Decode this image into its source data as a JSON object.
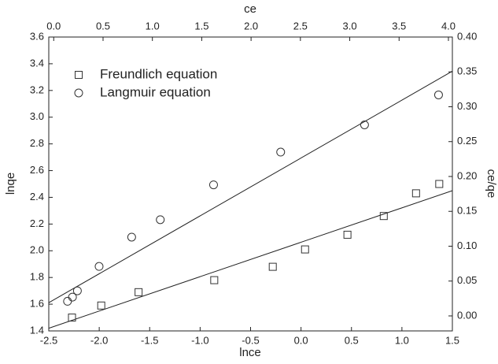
{
  "chart_data": {
    "type": "scatter",
    "x_label": "lnce",
    "y_label": "lnqe",
    "x2_label": "ce",
    "y2_label": "ce/qe",
    "xlim": [
      -2.5,
      1.5
    ],
    "xticks": [
      -2.5,
      {
        "value": -2,
        "label": "-2.0"
      },
      -1.5,
      {
        "value": -1,
        "label": "-1.0"
      },
      -0.5,
      {
        "value": 0,
        "label": "0.0"
      },
      0.5,
      {
        "value": 1,
        "label": "1.0"
      },
      1.5
    ],
    "ylim": [
      1.4,
      3.6
    ],
    "yticks": [
      1.4,
      1.6,
      1.8,
      {
        "value": 2,
        "label": "2.0"
      },
      2.2,
      2.4,
      2.6,
      2.8,
      {
        "value": 3,
        "label": "3.0"
      },
      3.2,
      3.4,
      3.6
    ],
    "x2lim": [
      -0.05,
      4.04
    ],
    "x2ticks": [
      {
        "value": 0,
        "label": "0.0"
      },
      0.5,
      {
        "value": 1,
        "label": "1.0"
      },
      1.5,
      {
        "value": 2,
        "label": "2.0"
      },
      2.5,
      {
        "value": 3,
        "label": "3.0"
      },
      3.5,
      {
        "value": 4,
        "label": "4.0"
      }
    ],
    "y2lim": [
      -0.0215,
      0.4
    ],
    "y2ticks": [
      {
        "value": 0,
        "label": "0.00"
      },
      0.05,
      {
        "value": 0.1,
        "label": "0.10"
      },
      0.15,
      {
        "value": 0.2,
        "label": "0.20"
      },
      0.25,
      {
        "value": 0.3,
        "label": "0.30"
      },
      0.35,
      {
        "value": 0.4,
        "label": "0.40"
      }
    ],
    "legend": "upper left",
    "series": [
      {
        "name": "Freundlich equation",
        "marker": "square",
        "color": "#333333",
        "x": [
          -2.27,
          -1.98,
          -1.61,
          -0.86,
          -0.28,
          0.04,
          0.46,
          0.82,
          1.14,
          1.37
        ],
        "values": [
          1.5,
          1.59,
          1.69,
          1.78,
          1.88,
          2.01,
          2.12,
          2.26,
          2.43,
          2.5
        ],
        "fit_x": [
          -2.5,
          1.5
        ],
        "fit_values": [
          1.42,
          2.45
        ]
      },
      {
        "name": "Langmuir equation",
        "marker": "circle",
        "color": "#333333",
        "axis": "y2",
        "xaxis": "x2",
        "x": [
          0.14,
          0.19,
          0.24,
          0.46,
          0.79,
          1.08,
          1.62,
          2.3,
          3.15,
          3.9
        ],
        "values": [
          0.021,
          0.027,
          0.036,
          0.071,
          0.113,
          0.138,
          0.188,
          0.235,
          0.274,
          0.317
        ],
        "fit_x": [
          -0.05,
          4.04
        ],
        "fit_values": [
          0.019,
          0.351
        ]
      }
    ]
  }
}
